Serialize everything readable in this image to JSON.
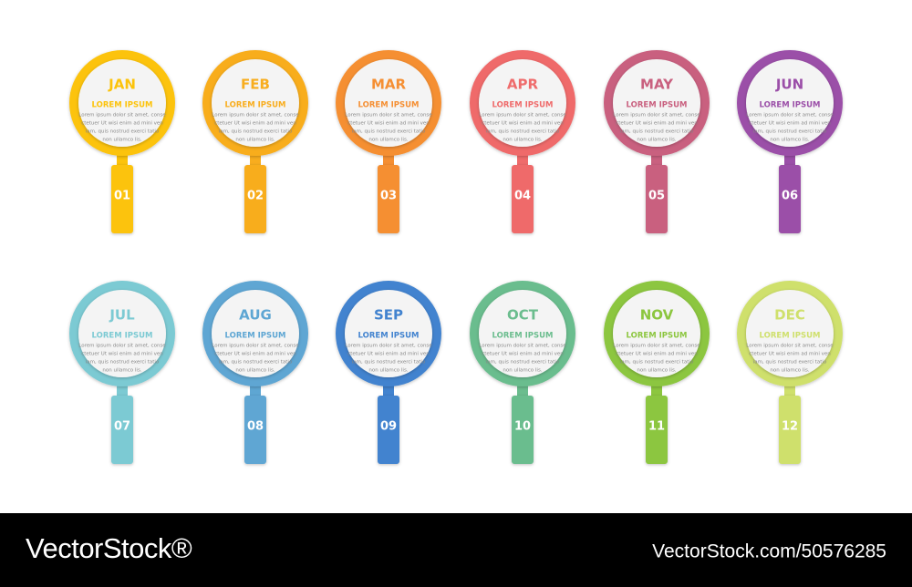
{
  "items": [
    {
      "month": "JAN",
      "label": "LOREM IPSUM",
      "lines": [
        "Lorem ipsum dolor sit amet, conse",
        "ctetuer Ut wisi enim ad mini ven",
        "iam, quis nostrud exerci tatio",
        "non ullamco lis."
      ],
      "number": "01",
      "color": "#fcc30b"
    },
    {
      "month": "FEB",
      "label": "LOREM IPSUM",
      "lines": [
        "Lorem ipsum dolor sit amet, conse",
        "ctetuer Ut wisi enim ad mini ven",
        "iam, quis nostrud exerci tatio",
        "non ullamco lis."
      ],
      "number": "02",
      "color": "#f8ad1e"
    },
    {
      "month": "MAR",
      "label": "LOREM IPSUM",
      "lines": [
        "Lorem ipsum dolor sit amet, conse",
        "ctetuer Ut wisi enim ad mini ven",
        "iam, quis nostrud exerci tatio",
        "non ullamco lis."
      ],
      "number": "03",
      "color": "#f58f33"
    },
    {
      "month": "APR",
      "label": "LOREM IPSUM",
      "lines": [
        "Lorem ipsum dolor sit amet, conse",
        "ctetuer Ut wisi enim ad mini ven",
        "iam, quis nostrud exerci tatio",
        "non ullamco lis."
      ],
      "number": "04",
      "color": "#ef6b6b"
    },
    {
      "month": "MAY",
      "label": "LOREM IPSUM",
      "lines": [
        "Lorem ipsum dolor sit amet, conse",
        "ctetuer Ut wisi enim ad mini ven",
        "iam, quis nostrud exerci tatio",
        "non ullamco lis."
      ],
      "number": "05",
      "color": "#c9607f"
    },
    {
      "month": "JUN",
      "label": "LOREM IPSUM",
      "lines": [
        "Lorem ipsum dolor sit amet, conse",
        "ctetuer Ut wisi enim ad mini ven",
        "iam, quis nostrud exerci tatio",
        "non ullamco lis."
      ],
      "number": "06",
      "color": "#9b4fa8"
    },
    {
      "month": "JUL",
      "label": "LOREM IPSUM",
      "lines": [
        "Lorem ipsum dolor sit amet, conse",
        "ctetuer Ut wisi enim ad mini ven",
        "iam, quis nostrud exerci tatio",
        "non ullamco lis."
      ],
      "number": "07",
      "color": "#7ccad3"
    },
    {
      "month": "AUG",
      "label": "LOREM IPSUM",
      "lines": [
        "Lorem ipsum dolor sit amet, conse",
        "ctetuer Ut wisi enim ad mini ven",
        "iam, quis nostrud exerci tatio",
        "non ullamco lis."
      ],
      "number": "08",
      "color": "#5ea6d3"
    },
    {
      "month": "SEP",
      "label": "LOREM IPSUM",
      "lines": [
        "Lorem ipsum dolor sit amet, conse",
        "ctetuer Ut wisi enim ad mini ven",
        "iam, quis nostrud exerci tatio",
        "non ullamco lis."
      ],
      "number": "09",
      "color": "#4283cf"
    },
    {
      "month": "OCT",
      "label": "LOREM IPSUM",
      "lines": [
        "Lorem ipsum dolor sit amet, conse",
        "ctetuer Ut wisi enim ad mini ven",
        "iam, quis nostrud exerci tatio",
        "non ullamco lis."
      ],
      "number": "10",
      "color": "#6bbd8e"
    },
    {
      "month": "NOV",
      "label": "LOREM IPSUM",
      "lines": [
        "Lorem ipsum dolor sit amet, conse",
        "ctetuer Ut wisi enim ad mini ven",
        "iam, quis nostrud exerci tatio",
        "non ullamco lis."
      ],
      "number": "11",
      "color": "#8cc63f"
    },
    {
      "month": "DEC",
      "label": "LOREM IPSUM",
      "lines": [
        "Lorem ipsum dolor sit amet, conse",
        "ctetuer Ut wisi enim ad mini ven",
        "iam, quis nostrud exerci tatio",
        "non ullamco lis."
      ],
      "number": "12",
      "color": "#cfe06c"
    }
  ],
  "footer": {
    "brand": "VectorStock®",
    "url": "VectorStock.com/50576285"
  }
}
